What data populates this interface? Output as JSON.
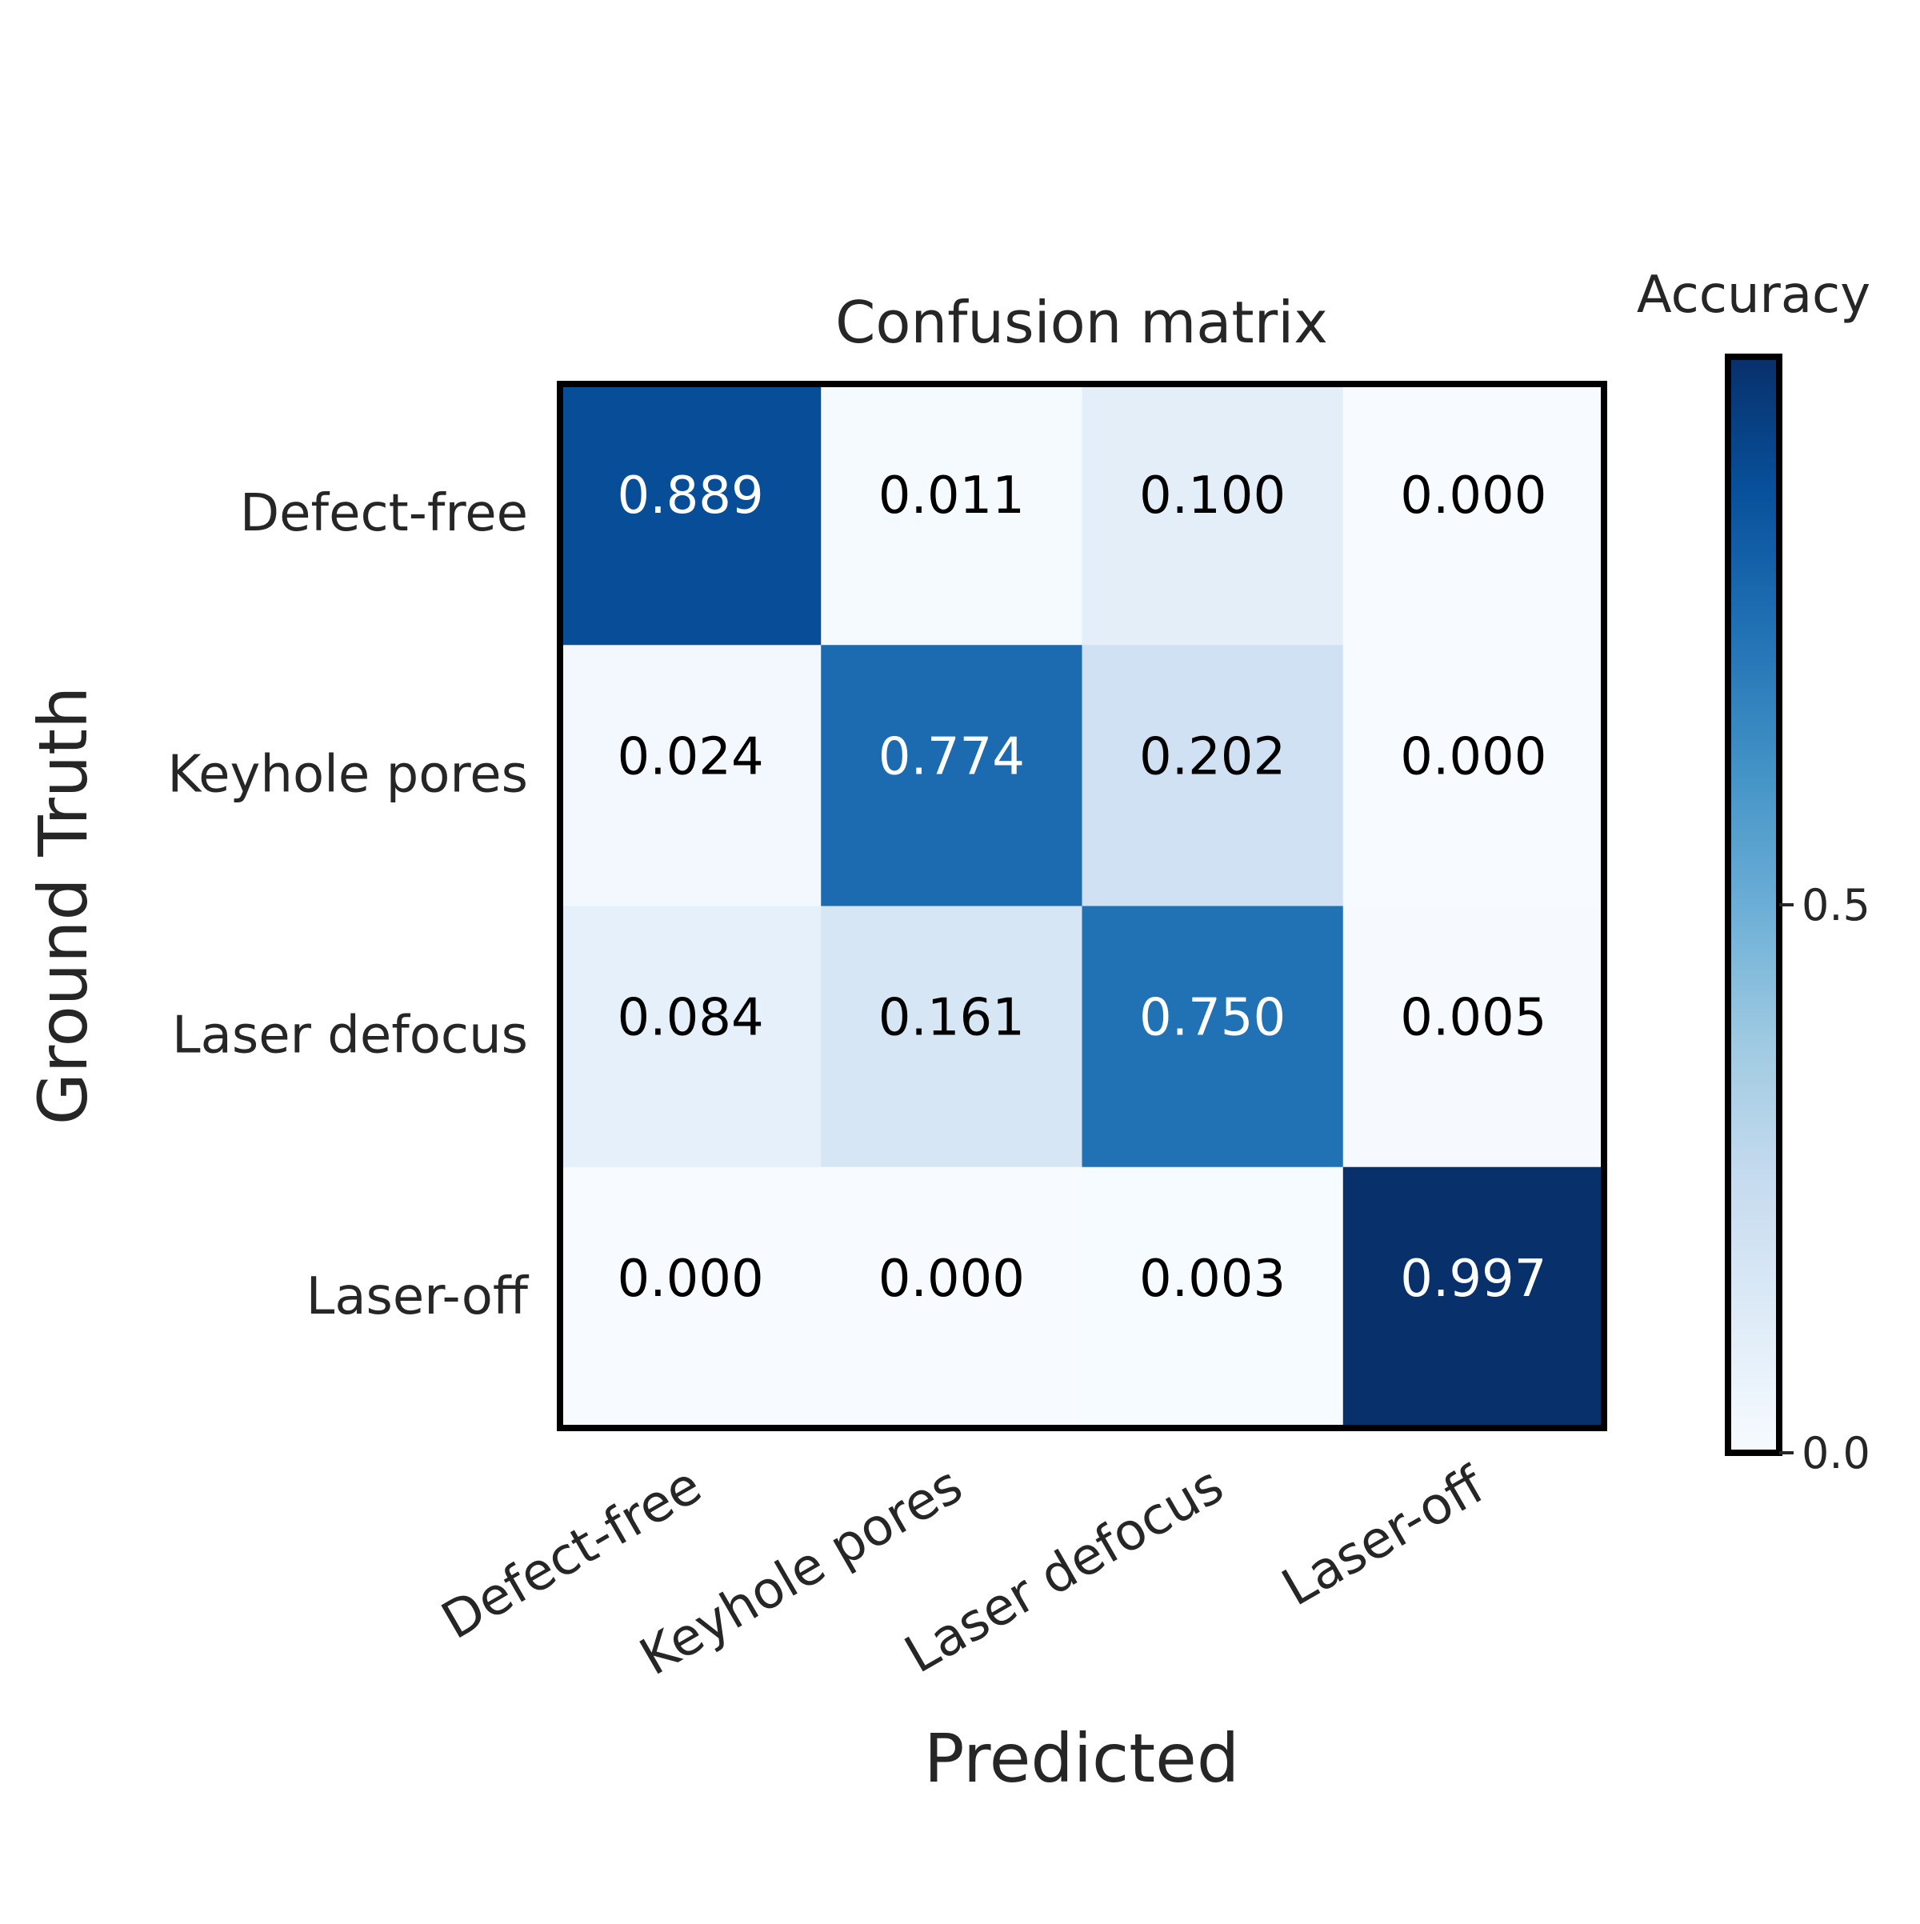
{
  "chart_data": {
    "type": "heatmap",
    "title": "Confusion matrix",
    "xlabel": "Predicted",
    "ylabel": "Ground Truth",
    "x_categories": [
      "Defect-free",
      "Keyhole pores",
      "Laser defocus",
      "Laser-off"
    ],
    "y_categories": [
      "Defect-free",
      "Keyhole pores",
      "Laser defocus",
      "Laser-off"
    ],
    "values": [
      [
        0.889,
        0.011,
        0.1,
        0.0
      ],
      [
        0.024,
        0.774,
        0.202,
        0.0
      ],
      [
        0.084,
        0.161,
        0.75,
        0.005
      ],
      [
        0.0,
        0.0,
        0.003,
        0.997
      ]
    ],
    "value_labels": [
      [
        "0.889",
        "0.011",
        "0.100",
        "0.000"
      ],
      [
        "0.024",
        "0.774",
        "0.202",
        "0.000"
      ],
      [
        "0.084",
        "0.161",
        "0.750",
        "0.005"
      ],
      [
        "0.000",
        "0.000",
        "0.003",
        "0.997"
      ]
    ],
    "colormap": "Blues",
    "colorbar": {
      "label": "Accuracy",
      "range": [
        0,
        1
      ],
      "ticks": [
        0.0,
        0.5
      ],
      "tick_labels": [
        "0.0",
        "0.5"
      ]
    },
    "grid": false
  }
}
